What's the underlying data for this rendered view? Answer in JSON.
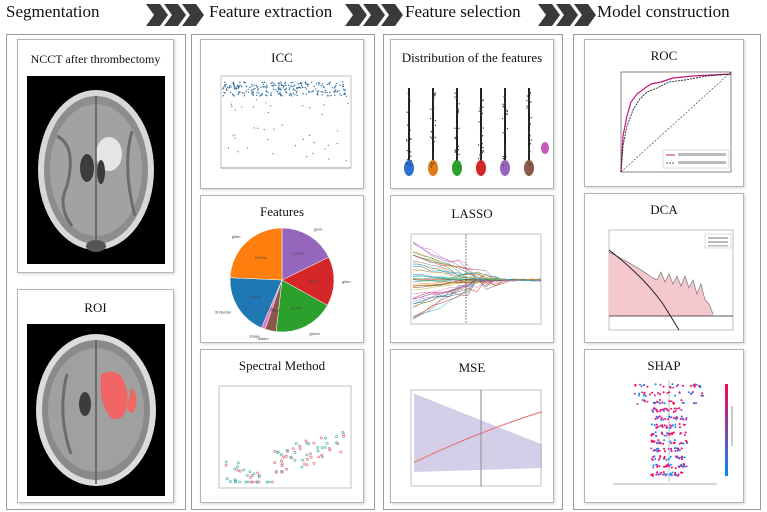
{
  "stages": [
    {
      "label": "Segmentation"
    },
    {
      "label": "Feature extraction"
    },
    {
      "label": "Feature selection"
    },
    {
      "label": "Model construction"
    }
  ],
  "segmentation": {
    "image1_title": "NCCT after thrombectomy",
    "image2_title": "ROI"
  },
  "extraction": {
    "icc_title": "ICC",
    "features_title": "Features",
    "spectral_title": "Spectral Method",
    "pie": {
      "labels": [
        "glcm",
        "glrlm",
        "glszm",
        "ngtdm",
        "shape",
        "firstorder",
        "gldm"
      ],
      "percents": [
        "17.6%",
        "15.1%",
        "18.5%",
        "3.4%",
        "1.2%",
        "19.0%",
        "24.0%"
      ],
      "colors": [
        "#9467bd",
        "#d62728",
        "#2ca02c",
        "#8c564b",
        "#e377c2",
        "#1f77b4",
        "#ff7f0e"
      ],
      "values": [
        17.6,
        15.1,
        18.5,
        3.4,
        1.2,
        19.0,
        24.0
      ]
    }
  },
  "selection": {
    "dist_title": "Distribution of the features",
    "lasso_title": "LASSO",
    "mse_title": "MSE"
  },
  "model": {
    "roc_title": "ROC",
    "dca_title": "DCA",
    "shap_title": "SHAP"
  }
}
